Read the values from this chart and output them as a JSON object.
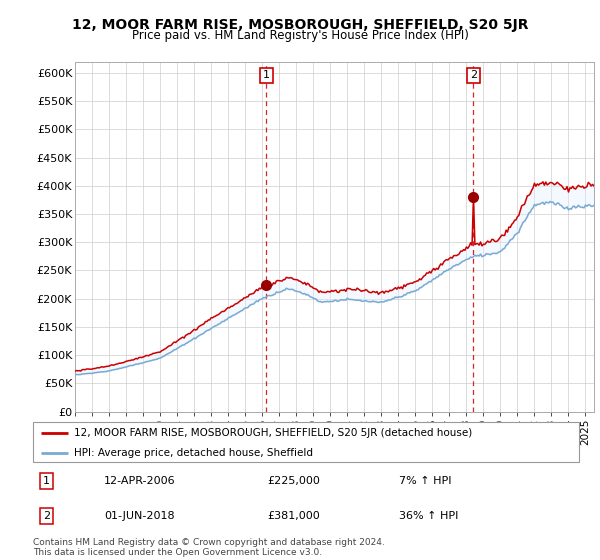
{
  "title": "12, MOOR FARM RISE, MOSBOROUGH, SHEFFIELD, S20 5JR",
  "subtitle": "Price paid vs. HM Land Registry's House Price Index (HPI)",
  "legend_line1": "12, MOOR FARM RISE, MOSBOROUGH, SHEFFIELD, S20 5JR (detached house)",
  "legend_line2": "HPI: Average price, detached house, Sheffield",
  "transaction1_date": "12-APR-2006",
  "transaction1_price": "£225,000",
  "transaction1_hpi": "7% ↑ HPI",
  "transaction2_date": "01-JUN-2018",
  "transaction2_price": "£381,000",
  "transaction2_hpi": "36% ↑ HPI",
  "footer": "Contains HM Land Registry data © Crown copyright and database right 2024.\nThis data is licensed under the Open Government Licence v3.0.",
  "house_color": "#cc0000",
  "hpi_color": "#aac4e0",
  "hpi_line_color": "#7aaad0",
  "marker_color": "#990000",
  "dashed_color": "#cc0000",
  "fill_color": "#ddeeff",
  "ylim_min": 0,
  "ylim_max": 620000,
  "ytick_values": [
    0,
    50000,
    100000,
    150000,
    200000,
    250000,
    300000,
    350000,
    400000,
    450000,
    500000,
    550000,
    600000
  ],
  "ytick_labels": [
    "£0",
    "£50K",
    "£100K",
    "£150K",
    "£200K",
    "£250K",
    "£300K",
    "£350K",
    "£400K",
    "£450K",
    "£500K",
    "£550K",
    "£600K"
  ],
  "xmin": 1995,
  "xmax": 2025.5,
  "grid_color": "#cccccc",
  "t1_year": 2006,
  "t1_month": 4,
  "t2_year": 2018,
  "t2_month": 6,
  "t1_price": 225000,
  "t2_price": 381000
}
